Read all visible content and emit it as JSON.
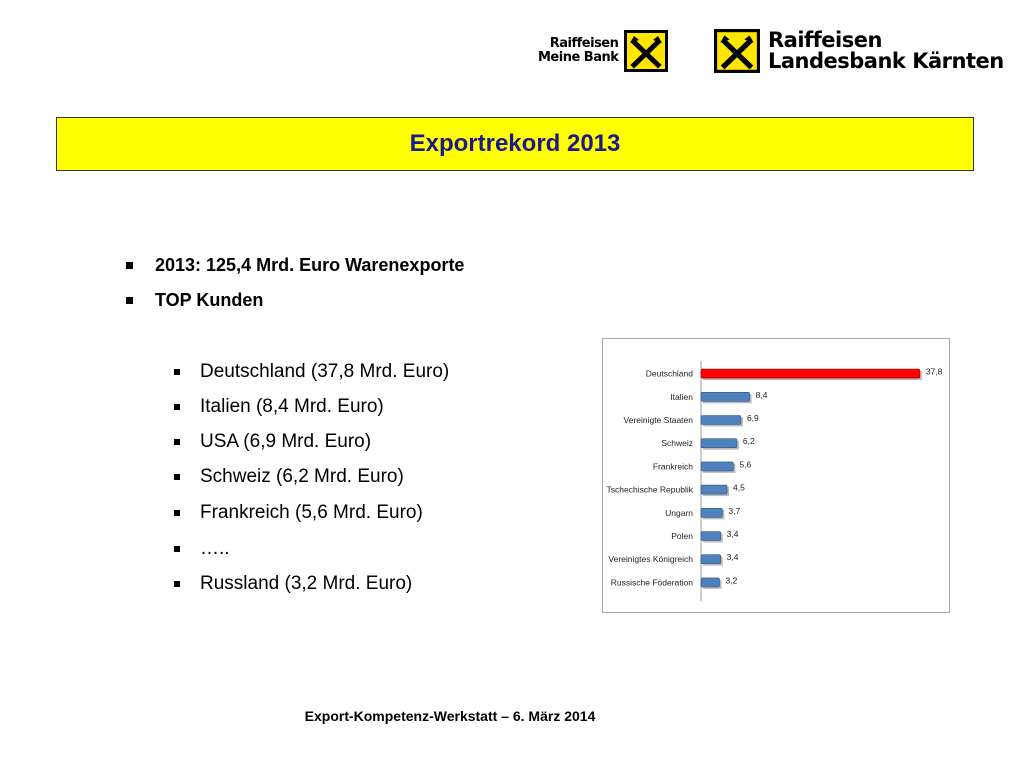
{
  "header": {
    "logo_left": {
      "line1": "Raiffeisen",
      "line2": "Meine Bank"
    },
    "logo_right": {
      "line1": "Raiffeisen",
      "line2": "Landesbank Kärnten"
    }
  },
  "title": "Exportrekord 2013",
  "bullets_top": [
    "2013: 125,4 Mrd. Euro Warenexporte",
    "TOP Kunden"
  ],
  "bullets_sub": [
    "Deutschland (37,8 Mrd. Euro)",
    "Italien (8,4 Mrd. Euro)",
    "USA (6,9 Mrd. Euro)",
    "Schweiz (6,2 Mrd. Euro)",
    "Frankreich (5,6 Mrd. Euro)",
    "…..",
    "Russland (3,2 Mrd. Euro)"
  ],
  "chart_data": {
    "type": "bar",
    "orientation": "horizontal",
    "categories": [
      "Deutschland",
      "Italien",
      "Vereinigte Staaten",
      "Schweiz",
      "Frankreich",
      "Tschechische Republik",
      "Ungarn",
      "Polen",
      "Vereinigtes Königreich",
      "Russische Föderation"
    ],
    "values": [
      37.8,
      8.4,
      6.9,
      6.2,
      5.6,
      4.5,
      3.7,
      3.4,
      3.4,
      3.2
    ],
    "value_labels": [
      "37,8",
      "8,4",
      "6,9",
      "6,2",
      "5,6",
      "4,5",
      "3,7",
      "3,4",
      "3,4",
      "3,2"
    ],
    "highlight_color": "#ff0000",
    "bar_color": "#4f81bd",
    "title": "",
    "xlabel": "",
    "ylabel": "",
    "xlim": [
      0,
      38
    ],
    "grid": false,
    "legend": "none"
  },
  "footer": "Export-Kompetenz-Werkstatt – 6. März 2014"
}
